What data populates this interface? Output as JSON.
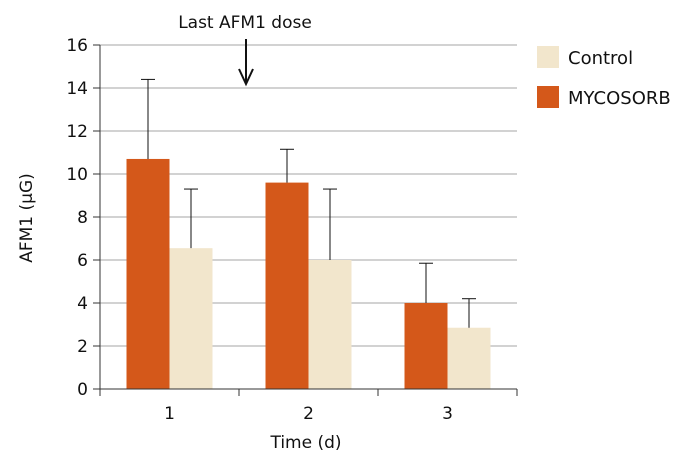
{
  "chart_data": {
    "type": "bar",
    "categories": [
      "1",
      "2",
      "3"
    ],
    "series": [
      {
        "name": "MYCOSORB",
        "color": "#d4581a",
        "values": [
          10.7,
          9.6,
          4.0
        ],
        "error_upper": [
          14.4,
          11.15,
          5.85
        ]
      },
      {
        "name": "Control",
        "color": "#f2e6cc",
        "values": [
          6.55,
          6.0,
          2.85
        ],
        "error_upper": [
          9.3,
          9.3,
          4.2
        ]
      }
    ],
    "xlabel": "Time (d)",
    "ylabel": "AFM1 (μG)",
    "ylim": [
      0,
      16
    ],
    "yticks": [
      0,
      2,
      4,
      6,
      8,
      10,
      12,
      14,
      16
    ],
    "grid": true,
    "legend": {
      "placement": "right",
      "entries": [
        {
          "label": "Control",
          "color": "#f2e6cc"
        },
        {
          "label": "MYCOSORB",
          "color": "#d4581a"
        }
      ]
    },
    "annotation": {
      "text": "Last AFM1 dose",
      "icon": "arrow-down-icon",
      "position_between_categories": [
        "1",
        "2"
      ]
    }
  }
}
